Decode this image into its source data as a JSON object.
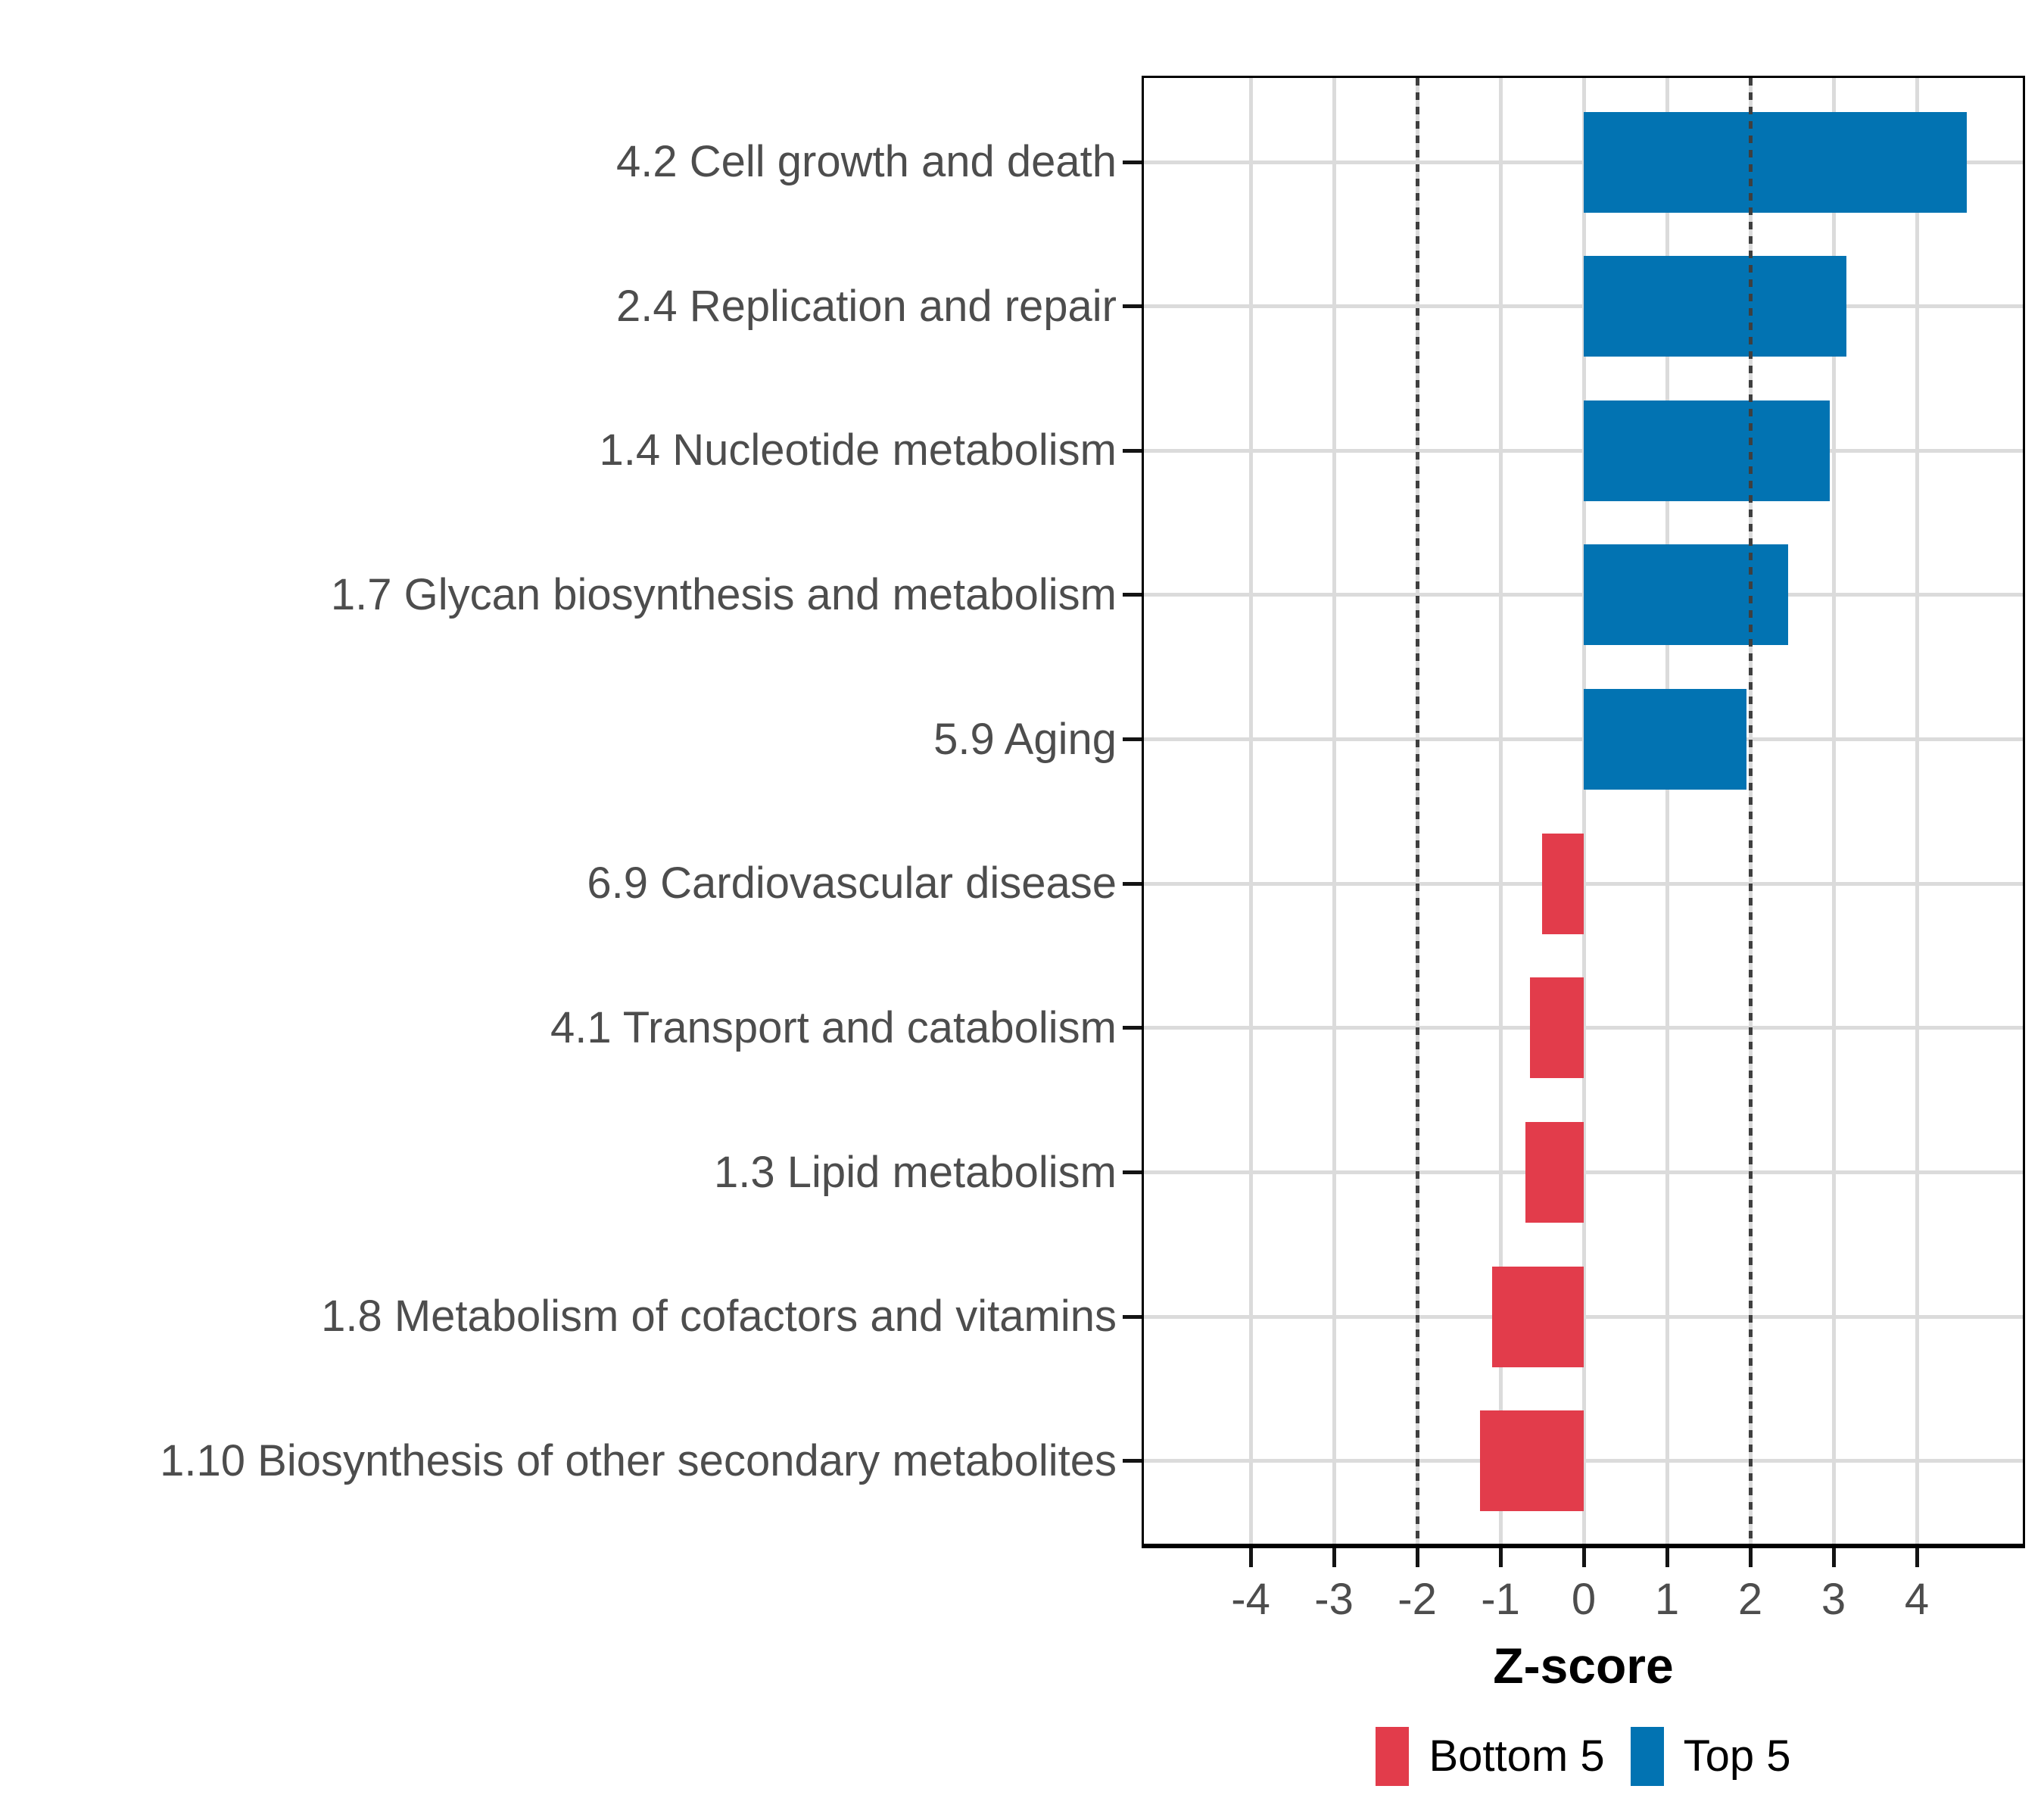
{
  "chart_data": {
    "type": "bar",
    "orientation": "horizontal",
    "xlabel": "Z-score",
    "xlim": [
      -5.31,
      5.3
    ],
    "x_ticks": [
      -4,
      -3,
      -2,
      -1,
      0,
      1,
      2,
      3,
      4
    ],
    "x_tick_labels": [
      "-4",
      "-3",
      "-2",
      "-1",
      "0",
      "1",
      "2",
      "3",
      "4"
    ],
    "reference_lines": [
      -2,
      2
    ],
    "grid": true,
    "legend_position": "bottom",
    "rows": [
      {
        "label": "4.2 Cell growth and death",
        "value": 4.6,
        "group": "Top 5"
      },
      {
        "label": "2.4 Replication and repair",
        "value": 3.15,
        "group": "Top 5"
      },
      {
        "label": "1.4 Nucleotide metabolism",
        "value": 2.95,
        "group": "Top 5"
      },
      {
        "label": "1.7 Glycan biosynthesis and metabolism",
        "value": 2.45,
        "group": "Top 5"
      },
      {
        "label": "5.9 Aging",
        "value": 1.95,
        "group": "Top 5"
      },
      {
        "label": "6.9 Cardiovascular disease",
        "value": -0.5,
        "group": "Bottom 5"
      },
      {
        "label": "4.1 Transport and catabolism",
        "value": -0.65,
        "group": "Bottom 5"
      },
      {
        "label": "1.3 Lipid metabolism",
        "value": -0.7,
        "group": "Bottom 5"
      },
      {
        "label": "1.8 Metabolism of cofactors and vitamins",
        "value": -1.1,
        "group": "Bottom 5"
      },
      {
        "label": "1.10 Biosynthesis of other secondary metabolites",
        "value": -1.25,
        "group": "Bottom 5"
      }
    ],
    "legend": [
      {
        "label": "Bottom 5",
        "color": "#e23c4b"
      },
      {
        "label": "Top 5",
        "color": "#0273b2"
      }
    ],
    "colors": {
      "Top 5": "#0273b2",
      "Bottom 5": "#e23c4b",
      "gridline": "#dbdbdb",
      "axis_text": "#4d4d4d",
      "reference_line": "#3f3f3f"
    }
  }
}
